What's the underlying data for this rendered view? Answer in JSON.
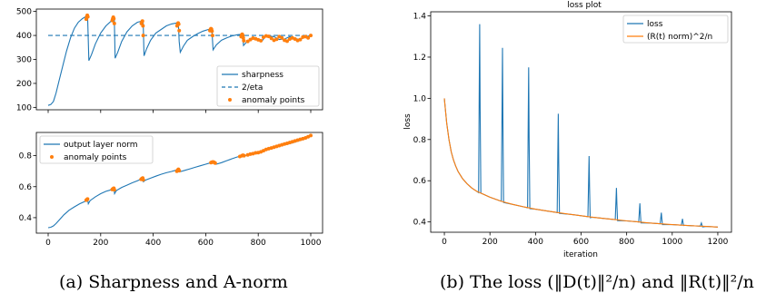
{
  "colors": {
    "blue": "#1f77b4",
    "orange": "#ff7f0e"
  },
  "captions": {
    "a_label": "(a)",
    "a_text": "Sharpness and A-norm",
    "b_label": "(b)",
    "b_text": "The loss (‖D(t)‖²/n) and ‖R(t)‖²/n"
  },
  "chart_data": [
    {
      "id": "sharpness",
      "type": "line",
      "title": "",
      "xlabel": "",
      "ylabel": "",
      "xlim": [
        -45,
        1045
      ],
      "ylim": [
        90,
        510
      ],
      "xticks": [
        0,
        200,
        400,
        600,
        800,
        1000
      ],
      "xticklabels": [
        "",
        "",
        "",
        "",
        "",
        ""
      ],
      "yticks": [
        100,
        200,
        300,
        400,
        500
      ],
      "legend": {
        "position": "lower-right",
        "entries": [
          "sharpness",
          "2/eta",
          "anomaly points"
        ]
      },
      "series": [
        {
          "name": "sharpness",
          "style": "solid",
          "color": "#1f77b4",
          "x": [
            0,
            10,
            20,
            30,
            40,
            55,
            70,
            85,
            100,
            115,
            130,
            148,
            150,
            155,
            165,
            180,
            200,
            220,
            240,
            249,
            252,
            255,
            265,
            280,
            300,
            320,
            340,
            358,
            362,
            365,
            375,
            390,
            410,
            430,
            450,
            470,
            490,
            496,
            499,
            503,
            515,
            530,
            550,
            570,
            590,
            610,
            621,
            624,
            628,
            640,
            660,
            680,
            700,
            720,
            736,
            740,
            744,
            760,
            780,
            800,
            815,
            825,
            840,
            860,
            880,
            900,
            920,
            940,
            960,
            980,
            1000
          ],
          "y": [
            108,
            112,
            125,
            160,
            205,
            270,
            335,
            390,
            430,
            455,
            470,
            482,
            480,
            295,
            320,
            365,
            410,
            440,
            460,
            475,
            470,
            305,
            330,
            375,
            415,
            440,
            455,
            460,
            453,
            315,
            345,
            380,
            410,
            425,
            440,
            448,
            452,
            450,
            375,
            330,
            355,
            380,
            395,
            408,
            418,
            425,
            426,
            415,
            340,
            360,
            380,
            390,
            398,
            403,
            405,
            402,
            358,
            378,
            388,
            385,
            378,
            392,
            398,
            395,
            383,
            385,
            395,
            387,
            383,
            395,
            400
          ]
        },
        {
          "name": "2/eta",
          "style": "dashed",
          "color": "#1f77b4",
          "x": [
            0,
            1000
          ],
          "y": [
            400,
            400
          ]
        },
        {
          "name": "anomaly points",
          "style": "markers",
          "color": "#ff7f0e",
          "x": [
            145,
            147,
            149,
            151,
            244,
            246,
            248,
            250,
            252,
            355,
            357,
            359,
            361,
            362,
            491,
            493,
            495,
            497,
            499,
            616,
            618,
            620,
            622,
            624,
            626,
            735,
            737,
            739,
            741,
            743,
            745,
            760,
            770,
            780,
            790,
            800,
            810,
            820,
            830,
            840,
            850,
            860,
            870,
            880,
            890,
            900,
            910,
            920,
            930,
            940,
            950,
            960,
            970,
            980,
            990,
            1000
          ],
          "y": [
            468,
            478,
            484,
            478,
            462,
            470,
            476,
            470,
            450,
            450,
            456,
            460,
            440,
            400,
            440,
            446,
            452,
            447,
            420,
            420,
            425,
            428,
            426,
            418,
            400,
            395,
            402,
            405,
            400,
            390,
            378,
            375,
            383,
            389,
            386,
            382,
            378,
            392,
            398,
            396,
            388,
            380,
            384,
            395,
            390,
            380,
            376,
            385,
            390,
            385,
            379,
            383,
            393,
            395,
            390,
            400
          ]
        }
      ]
    },
    {
      "id": "output-norm",
      "type": "line",
      "title": "",
      "xlabel": "",
      "ylabel": "",
      "xlim": [
        -45,
        1045
      ],
      "ylim": [
        0.3,
        0.95
      ],
      "xticks": [
        0,
        200,
        400,
        600,
        800,
        1000
      ],
      "xticklabels": [
        "0",
        "200",
        "400",
        "600",
        "800",
        "1000"
      ],
      "yticks": [
        0.4,
        0.6,
        0.8
      ],
      "yticklabels": [
        "0.4",
        "0.6",
        "0.8"
      ],
      "legend": {
        "position": "upper-left",
        "entries": [
          "output layer norm",
          "anomaly points"
        ]
      },
      "series": [
        {
          "name": "output layer norm",
          "style": "solid",
          "color": "#1f77b4",
          "x": [
            0,
            10,
            20,
            30,
            45,
            60,
            80,
            100,
            120,
            140,
            150,
            153,
            160,
            180,
            200,
            220,
            240,
            250,
            253,
            260,
            280,
            300,
            320,
            340,
            355,
            360,
            363,
            370,
            390,
            410,
            430,
            450,
            470,
            490,
            495,
            500,
            520,
            540,
            560,
            580,
            600,
            620,
            630,
            636,
            640,
            660,
            680,
            700,
            720,
            740,
            745,
            750,
            760,
            780,
            800,
            820,
            840,
            860,
            880,
            900,
            920,
            940,
            960,
            980,
            1000
          ],
          "y": [
            0.335,
            0.338,
            0.347,
            0.362,
            0.39,
            0.418,
            0.448,
            0.47,
            0.49,
            0.505,
            0.52,
            0.49,
            0.51,
            0.535,
            0.555,
            0.57,
            0.58,
            0.59,
            0.555,
            0.575,
            0.595,
            0.61,
            0.625,
            0.638,
            0.65,
            0.66,
            0.632,
            0.642,
            0.655,
            0.668,
            0.68,
            0.69,
            0.698,
            0.708,
            0.712,
            0.695,
            0.705,
            0.715,
            0.725,
            0.735,
            0.745,
            0.755,
            0.76,
            0.755,
            0.745,
            0.755,
            0.768,
            0.78,
            0.792,
            0.8,
            0.805,
            0.8,
            0.805,
            0.812,
            0.822,
            0.835,
            0.845,
            0.855,
            0.862,
            0.87,
            0.878,
            0.888,
            0.898,
            0.91,
            0.925
          ]
        },
        {
          "name": "anomaly points",
          "style": "markers",
          "color": "#ff7f0e",
          "x": [
            145,
            148,
            150,
            244,
            247,
            250,
            252,
            354,
            357,
            360,
            362,
            490,
            493,
            496,
            499,
            620,
            624,
            628,
            632,
            636,
            730,
            738,
            742,
            746,
            760,
            770,
            780,
            790,
            800,
            810,
            820,
            830,
            840,
            850,
            860,
            870,
            880,
            890,
            900,
            910,
            920,
            930,
            940,
            950,
            960,
            970,
            980,
            990,
            1000
          ],
          "y": [
            0.513,
            0.517,
            0.52,
            0.582,
            0.586,
            0.59,
            0.58,
            0.648,
            0.652,
            0.656,
            0.645,
            0.7,
            0.706,
            0.712,
            0.703,
            0.755,
            0.758,
            0.76,
            0.757,
            0.752,
            0.795,
            0.8,
            0.803,
            0.8,
            0.805,
            0.81,
            0.813,
            0.818,
            0.82,
            0.825,
            0.832,
            0.84,
            0.845,
            0.85,
            0.855,
            0.86,
            0.865,
            0.87,
            0.875,
            0.88,
            0.885,
            0.89,
            0.895,
            0.9,
            0.905,
            0.91,
            0.915,
            0.922,
            0.93
          ]
        }
      ]
    },
    {
      "id": "loss",
      "type": "line",
      "title": "loss plot",
      "xlabel": "iteration",
      "ylabel": "loss",
      "xlim": [
        -60,
        1260
      ],
      "ylim": [
        0.35,
        1.42
      ],
      "xticks": [
        0,
        200,
        400,
        600,
        800,
        1000,
        1200
      ],
      "xticklabels": [
        "0",
        "200",
        "400",
        "600",
        "800",
        "1000",
        "1200"
      ],
      "yticks": [
        0.4,
        0.6,
        0.8,
        1.0,
        1.2,
        1.4
      ],
      "yticklabels": [
        "0.4",
        "0.6",
        "0.8",
        "1.0",
        "1.2",
        "1.4"
      ],
      "legend": {
        "position": "upper-right",
        "entries": [
          "loss",
          "(R(t) norm)^2/n"
        ]
      },
      "base": {
        "x": [
          0,
          10,
          20,
          30,
          40,
          50,
          60,
          80,
          100,
          120,
          140,
          160,
          200,
          250,
          300,
          350,
          400,
          450,
          500,
          550,
          600,
          650,
          700,
          750,
          800,
          850,
          900,
          950,
          1000,
          1050,
          1100,
          1150,
          1200
        ],
        "y": [
          1.0,
          0.88,
          0.8,
          0.74,
          0.7,
          0.67,
          0.645,
          0.61,
          0.585,
          0.565,
          0.55,
          0.54,
          0.52,
          0.5,
          0.485,
          0.473,
          0.462,
          0.453,
          0.445,
          0.437,
          0.43,
          0.423,
          0.417,
          0.411,
          0.405,
          0.4,
          0.395,
          0.391,
          0.387,
          0.384,
          0.381,
          0.378,
          0.375
        ]
      },
      "loss_spikes": [
        {
          "x": 155,
          "peak": 1.36
        },
        {
          "x": 255,
          "peak": 1.245
        },
        {
          "x": 370,
          "peak": 1.15
        },
        {
          "x": 500,
          "peak": 0.925
        },
        {
          "x": 635,
          "peak": 0.72
        },
        {
          "x": 755,
          "peak": 0.565
        },
        {
          "x": 858,
          "peak": 0.49
        },
        {
          "x": 952,
          "peak": 0.445
        },
        {
          "x": 1045,
          "peak": 0.415
        },
        {
          "x": 1128,
          "peak": 0.395
        }
      ],
      "series": [
        {
          "name": "loss",
          "style": "solid",
          "color": "#1f77b4"
        },
        {
          "name": "(R(t) norm)^2/n",
          "style": "solid",
          "color": "#ff7f0e"
        }
      ]
    }
  ]
}
